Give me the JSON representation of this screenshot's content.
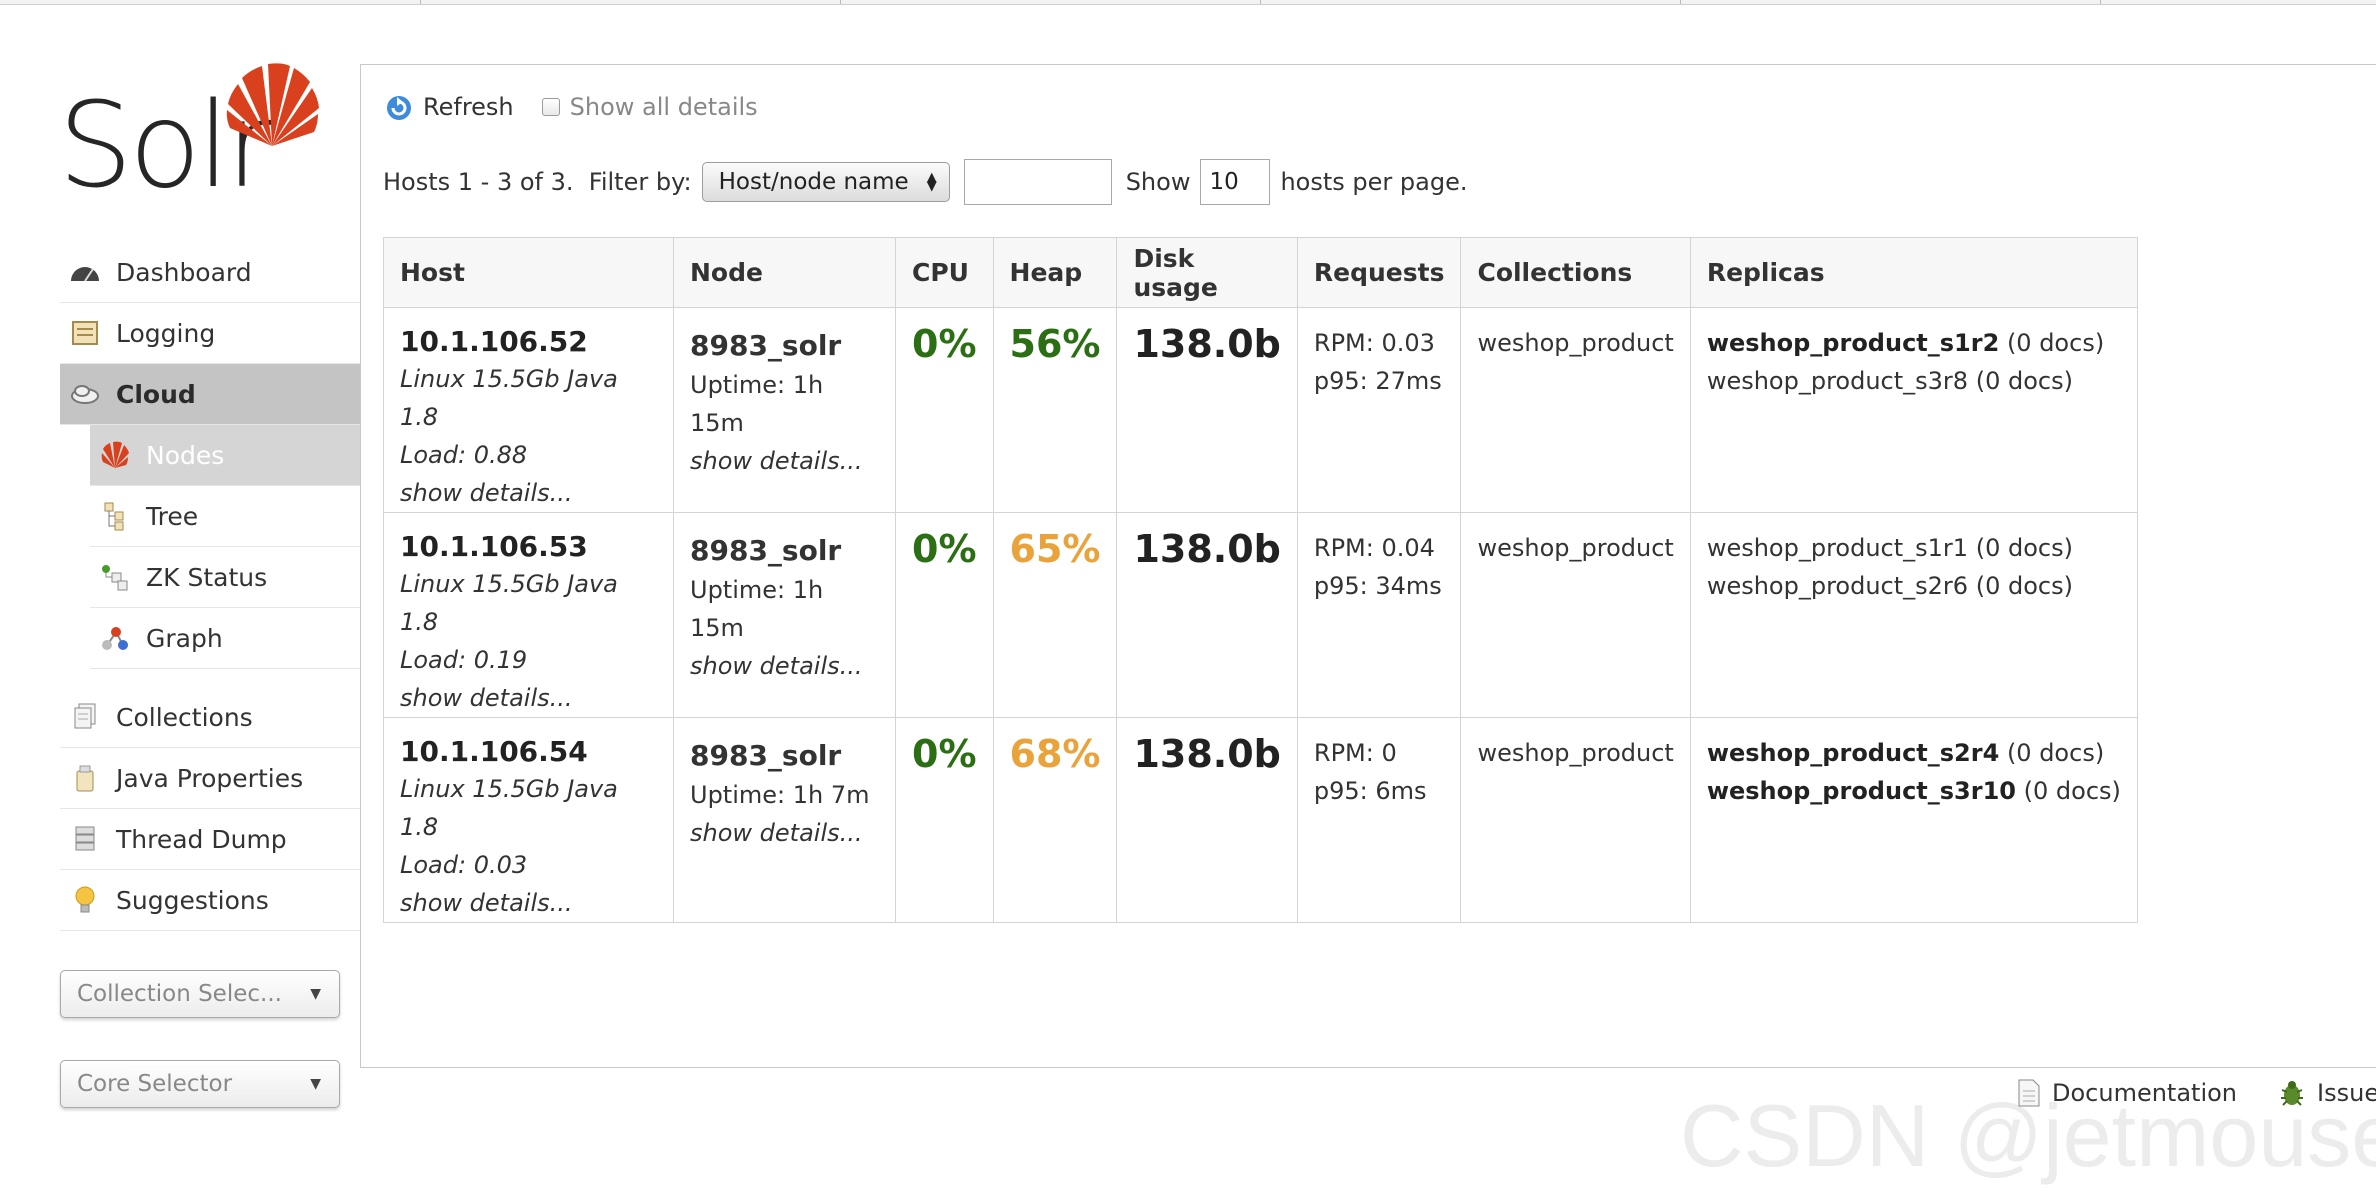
{
  "logo": {
    "text": "Solr"
  },
  "sidebar": {
    "items": [
      {
        "label": "Dashboard"
      },
      {
        "label": "Logging"
      },
      {
        "label": "Cloud"
      }
    ],
    "cloud_sub": [
      {
        "label": "Nodes"
      },
      {
        "label": "Tree"
      },
      {
        "label": "ZK Status"
      },
      {
        "label": "Graph"
      }
    ],
    "items2": [
      {
        "label": "Collections"
      },
      {
        "label": "Java Properties"
      },
      {
        "label": "Thread Dump"
      },
      {
        "label": "Suggestions"
      }
    ],
    "collection_selector": "Collection Selec...",
    "core_selector": "Core Selector"
  },
  "toolbar": {
    "refresh_label": "Refresh",
    "show_all_details_label": "Show all details",
    "show_all_details_checked": false
  },
  "filter": {
    "hosts_text": "Hosts 1 - 3 of 3.  Filter by:",
    "filter_by_value": "Host/node name",
    "filter_input_value": "",
    "show_label": "Show",
    "per_page_value": "10",
    "per_page_suffix": "hosts per page."
  },
  "table": {
    "headers": [
      "Host",
      "Node",
      "CPU",
      "Heap",
      "Disk usage",
      "Requests",
      "Collections",
      "Replicas"
    ],
    "rows": [
      {
        "host": "10.1.106.52",
        "host_info": "Linux 15.5Gb Java 1.8",
        "load": "Load: 0.88",
        "host_details": "show details...",
        "node": "8983_solr",
        "uptime": "Uptime: 1h 15m",
        "node_details": "show details...",
        "cpu": "0%",
        "heap": "56%",
        "disk": "138.0b",
        "rpm": "RPM: 0.03",
        "p95": "p95: 27ms",
        "collections": "weshop_product",
        "replicas": [
          {
            "name": "weshop_product_s1r2",
            "docs": "(0 docs)"
          },
          {
            "name": "weshop_product_s3r8",
            "docs": "(0 docs)"
          }
        ]
      },
      {
        "host": "10.1.106.53",
        "host_info": "Linux 15.5Gb Java 1.8",
        "load": "Load: 0.19",
        "host_details": "show details...",
        "node": "8983_solr",
        "uptime": "Uptime: 1h 15m",
        "node_details": "show details...",
        "cpu": "0%",
        "heap": "65%",
        "disk": "138.0b",
        "rpm": "RPM: 0.04",
        "p95": "p95: 34ms",
        "collections": "weshop_product",
        "replicas": [
          {
            "name": "weshop_product_s1r1",
            "docs": "(0 docs)"
          },
          {
            "name": "weshop_product_s2r6",
            "docs": "(0 docs)"
          }
        ]
      },
      {
        "host": "10.1.106.54",
        "host_info": "Linux 15.5Gb Java 1.8",
        "load": "Load: 0.03",
        "host_details": "show details...",
        "node": "8983_solr",
        "uptime": "Uptime: 1h 7m",
        "node_details": "show details...",
        "cpu": "0%",
        "heap": "68%",
        "disk": "138.0b",
        "rpm": "RPM: 0",
        "p95": "p95: 6ms",
        "collections": "weshop_product",
        "replicas": [
          {
            "name": "weshop_product_s2r4",
            "docs": "(0 docs)"
          },
          {
            "name": "weshop_product_s3r10",
            "docs": "(0 docs)"
          }
        ]
      }
    ]
  },
  "footer": {
    "documentation": "Documentation",
    "issue": "Issue"
  },
  "watermark": "CSDN @jetmouse",
  "colors": {
    "cpu_green": "#2b6e14",
    "heap_green": "#2b6e14",
    "heap_orange": "#e9a33a",
    "solr_red": "#d9411e",
    "active_nav": "#c4c4c4"
  }
}
